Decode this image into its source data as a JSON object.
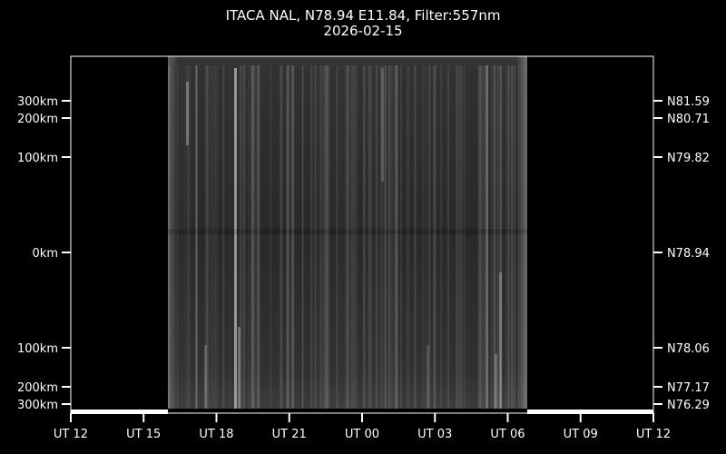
{
  "chart_data": {
    "type": "heatmap",
    "title": "ITACA NAL, N78.94 E11.84, Filter:557nm",
    "subtitle": "2026-02-15",
    "x_ticks": [
      "UT 12",
      "UT 15",
      "UT 18",
      "UT 21",
      "UT 00",
      "UT 03",
      "UT 06",
      "UT 09",
      "UT 12"
    ],
    "x_tick_hours": [
      0,
      3,
      6,
      9,
      12,
      15,
      18,
      21,
      24
    ],
    "y_left_ticks": [
      {
        "label": "300km",
        "km": 300,
        "side": "north"
      },
      {
        "label": "200km",
        "km": 200,
        "side": "north"
      },
      {
        "label": "100km",
        "km": 100,
        "side": "north"
      },
      {
        "label": "0km",
        "km": 0,
        "side": "center"
      },
      {
        "label": "100km",
        "km": 100,
        "side": "south"
      },
      {
        "label": "200km",
        "km": 200,
        "side": "south"
      },
      {
        "label": "300km",
        "km": 300,
        "side": "south"
      }
    ],
    "y_right_ticks": [
      "N81.59",
      "N80.71",
      "N79.82",
      "N78.94",
      "N78.06",
      "N77.17",
      "N76.29"
    ],
    "data_coverage_hours": [
      4.0,
      18.8
    ],
    "colormap": "gray",
    "colors": {
      "background": "#000000",
      "axes": "#ffffff"
    }
  }
}
